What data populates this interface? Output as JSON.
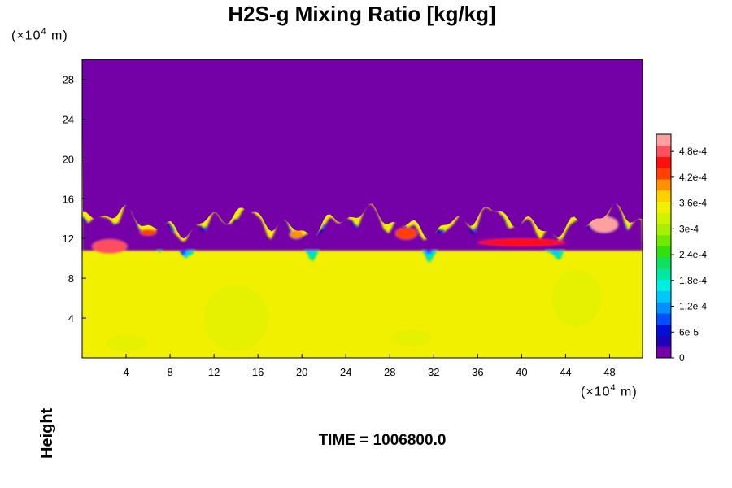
{
  "chart_data": {
    "type": "heatmap",
    "title": "H2S-g Mixing Ratio [kg/kg]",
    "xlabel": "",
    "ylabel": "Height",
    "x_unit": [
      "(×10",
      "4",
      " m)"
    ],
    "y_unit": [
      "(×10",
      "4",
      " m)"
    ],
    "xlim": [
      0,
      51
    ],
    "ylim": [
      0,
      30
    ],
    "x_ticks": [
      4,
      8,
      12,
      16,
      20,
      24,
      28,
      32,
      36,
      40,
      44,
      48
    ],
    "y_ticks": [
      4,
      8,
      12,
      16,
      20,
      24,
      28
    ],
    "colorbar": {
      "range": [
        0,
        0.00052
      ],
      "tick_values": [
        0,
        6e-05,
        0.00012,
        0.00018,
        0.00024,
        0.0003,
        0.00036,
        0.00042,
        0.00048
      ],
      "tick_labels": [
        "0",
        "6e-5",
        "1.2e-4",
        "1.8e-4",
        "2.4e-4",
        "3e-4",
        "3.6e-4",
        "4.2e-4",
        "4.8e-4"
      ],
      "colors": [
        "#7400a8",
        "#2000b8",
        "#0010d8",
        "#0050ff",
        "#0090ff",
        "#00c8ff",
        "#00f0e0",
        "#00e8a0",
        "#10e060",
        "#30e010",
        "#70e800",
        "#a8f000",
        "#d0f400",
        "#f0f000",
        "#ffd000",
        "#ff9000",
        "#ff4000",
        "#ff1010",
        "#ff5060",
        "#ffa0a0"
      ]
    },
    "annotation": "TIME = 1006800.0",
    "field_description_values": {
      "upper_layer_value": 0,
      "lower_layer_value": 0.00034,
      "interface_height_range": [
        11,
        15
      ]
    }
  }
}
